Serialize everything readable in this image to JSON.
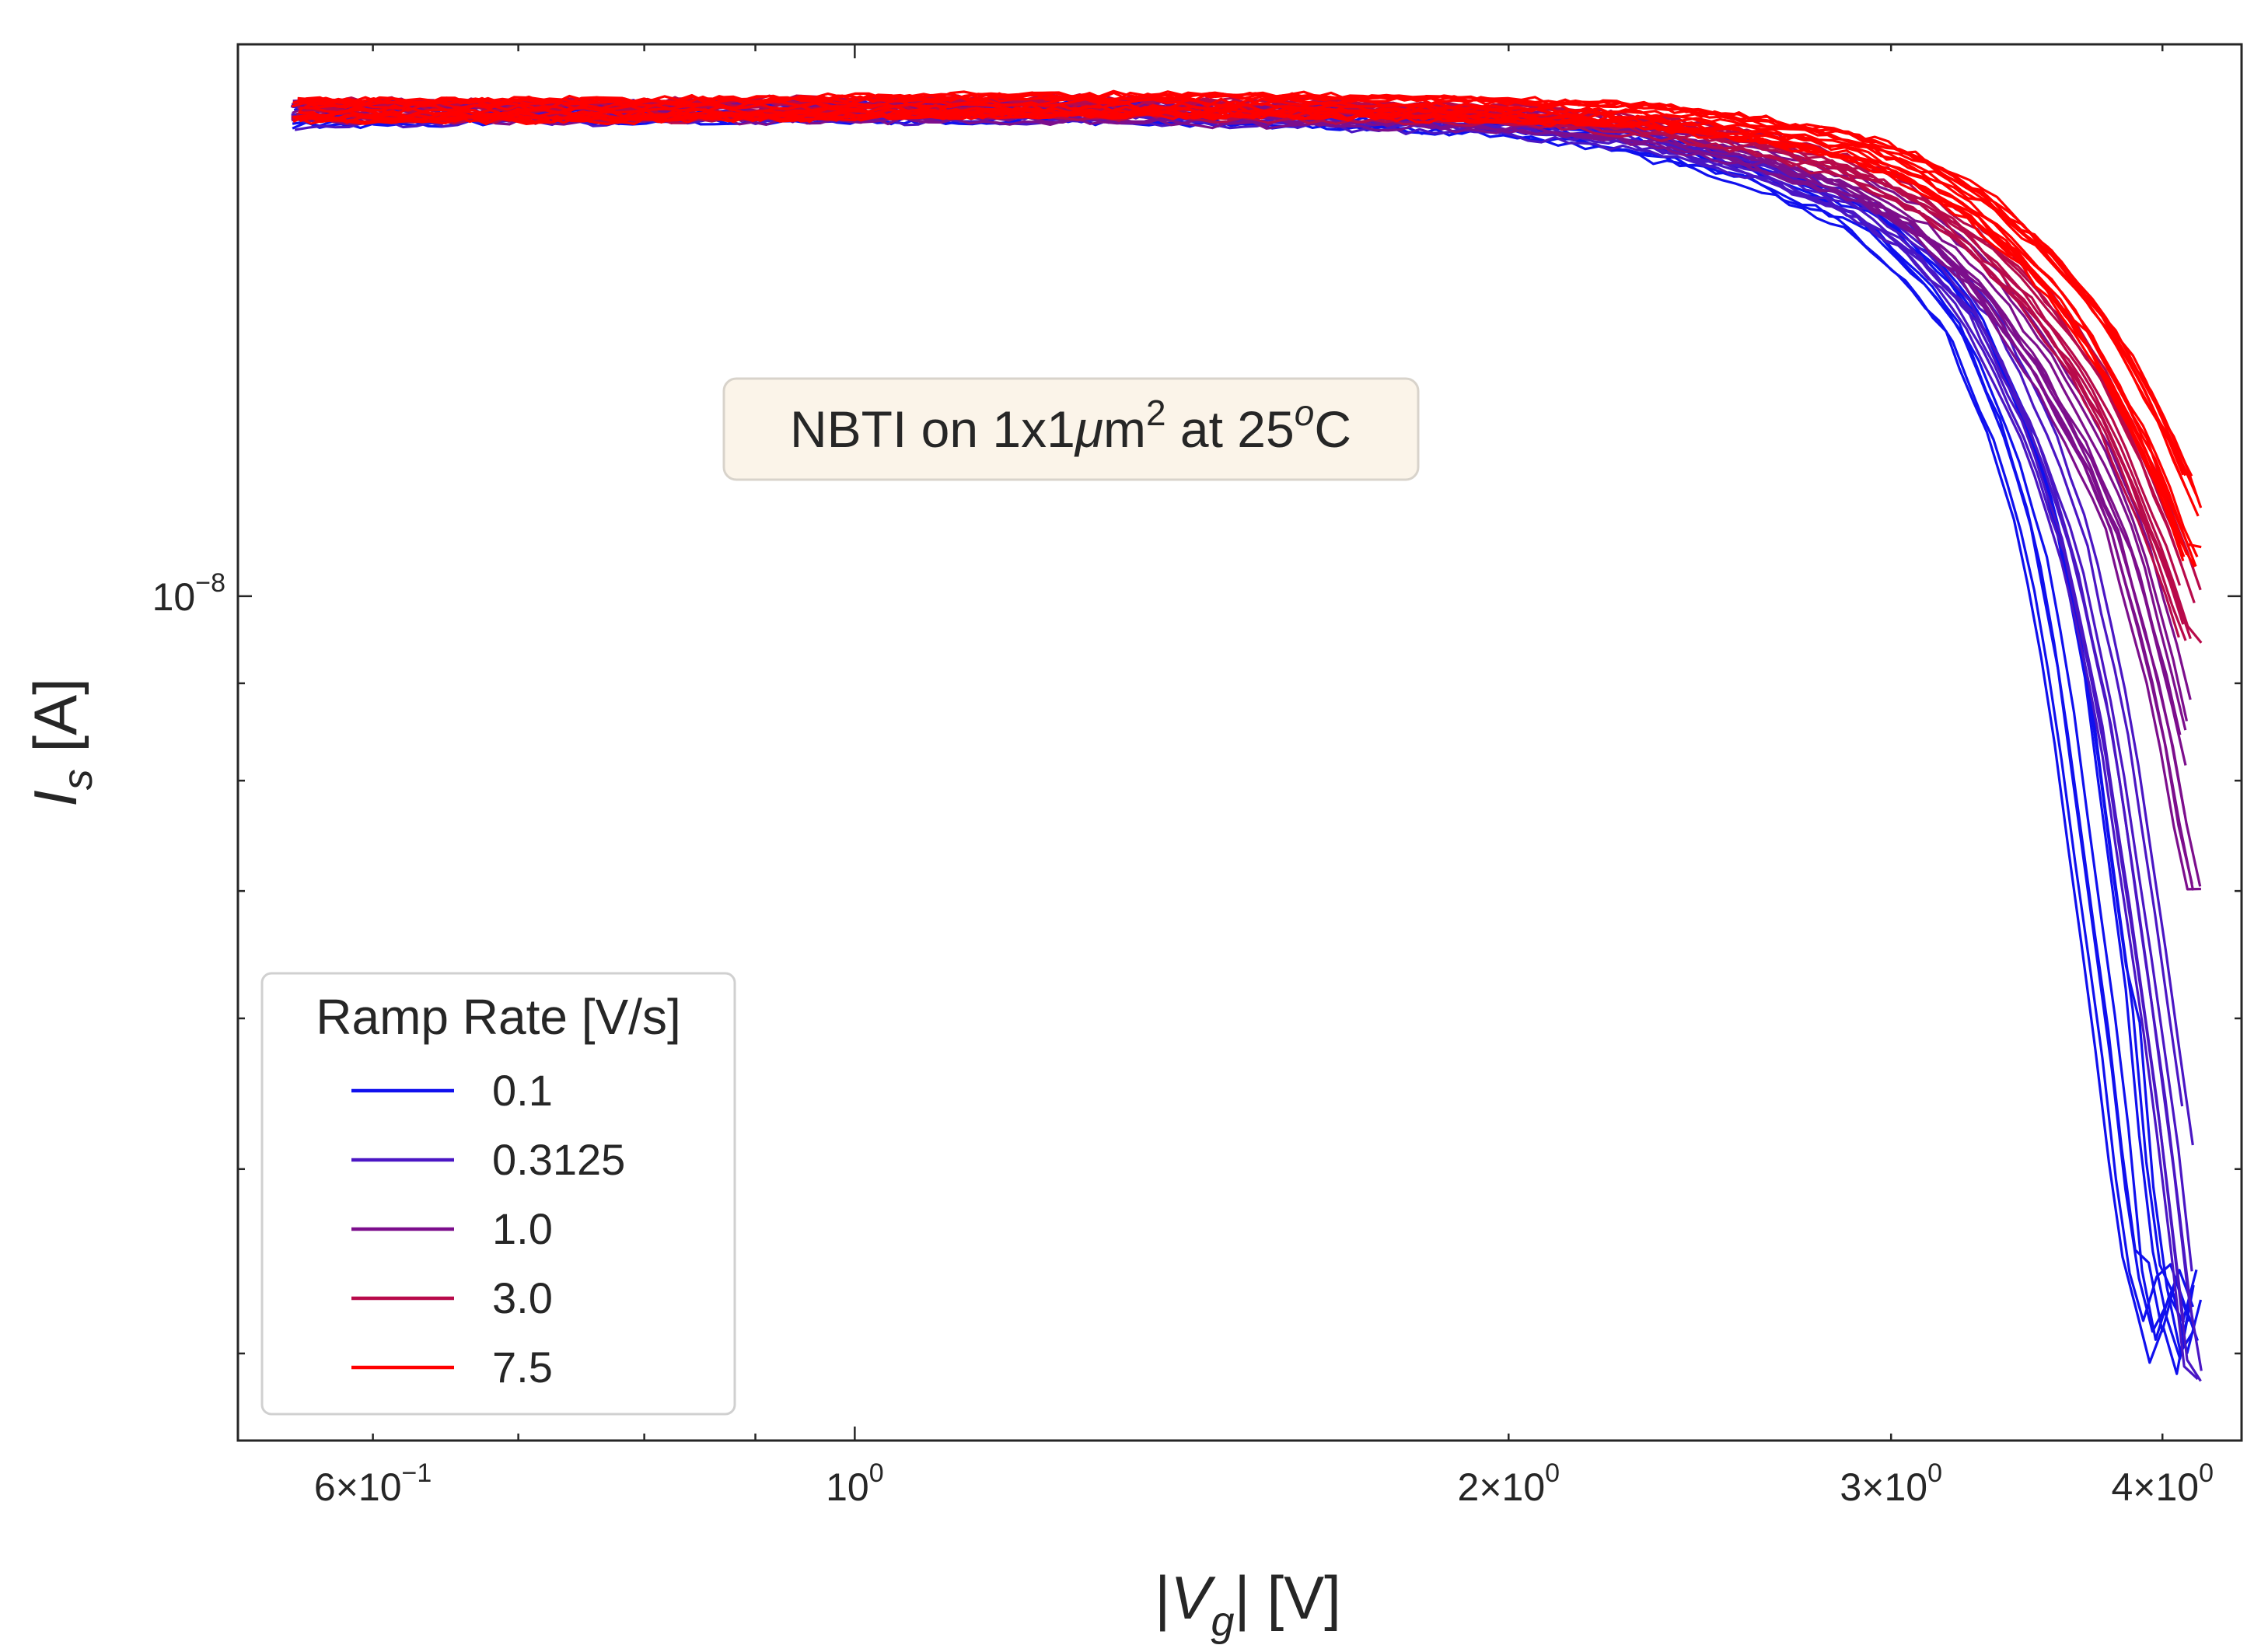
{
  "chart_data": {
    "type": "line",
    "x_scale": "log",
    "y_scale": "log",
    "xlabel": "|V_g| [V]",
    "ylabel": "I_s [A]",
    "xlim": [
      0.52,
      4.35
    ],
    "ylim": [
      3.6e-09,
      1.95e-08
    ],
    "x_ticks": [
      {
        "value": 0.6,
        "mant": "6",
        "sep": "×",
        "exp": "−1"
      },
      {
        "value": 1.0,
        "mant": "",
        "sep": "",
        "exp": "0"
      },
      {
        "value": 2.0,
        "mant": "2",
        "sep": "×",
        "exp": "0"
      },
      {
        "value": 3.0,
        "mant": "3",
        "sep": "×",
        "exp": "0"
      },
      {
        "value": 4.0,
        "mant": "4",
        "sep": "×",
        "exp": "0"
      }
    ],
    "y_ticks": [
      {
        "value": 1e-08,
        "mant": "",
        "sep": "",
        "exp": "−8"
      }
    ],
    "tick_base": "10",
    "annotation": {
      "parts": [
        "NBTI on 1x1",
        "μ",
        "m",
        "2",
        " at 25",
        "o",
        "C"
      ]
    },
    "legend": {
      "title": "Ramp Rate [V/s]",
      "location": "lower-left"
    },
    "series": [
      {
        "name": "0.1",
        "color": "#1010ee",
        "replicates": 8,
        "points": [
          [
            0.55,
            1.79e-08
          ],
          [
            0.8,
            1.8e-08
          ],
          [
            1.2,
            1.8e-08
          ],
          [
            1.6,
            1.79e-08
          ],
          [
            2.0,
            1.77e-08
          ],
          [
            2.3,
            1.73e-08
          ],
          [
            2.6,
            1.67e-08
          ],
          [
            2.9,
            1.58e-08
          ],
          [
            3.1,
            1.48e-08
          ],
          [
            3.25,
            1.38e-08
          ],
          [
            3.4,
            1.22e-08
          ],
          [
            3.52,
            1.07e-08
          ],
          [
            3.62,
            9e-09
          ],
          [
            3.72,
            7.1e-09
          ],
          [
            3.82,
            5.7e-09
          ],
          [
            3.9,
            4.6e-09
          ],
          [
            4.0,
            4.15e-09
          ],
          [
            4.12,
            4.3e-09
          ],
          [
            4.17,
            4.05e-09
          ]
        ]
      },
      {
        "name": "0.3125",
        "color": "#4a16c4",
        "replicates": 8,
        "points": [
          [
            0.55,
            1.79e-08
          ],
          [
            0.8,
            1.8e-08
          ],
          [
            1.2,
            1.8e-08
          ],
          [
            1.6,
            1.79e-08
          ],
          [
            2.0,
            1.77e-08
          ],
          [
            2.3,
            1.74e-08
          ],
          [
            2.6,
            1.68e-08
          ],
          [
            2.9,
            1.6e-08
          ],
          [
            3.1,
            1.52e-08
          ],
          [
            3.3,
            1.4e-08
          ],
          [
            3.5,
            1.22e-08
          ],
          [
            3.65,
            1.06e-08
          ],
          [
            3.8,
            8.6e-09
          ],
          [
            3.95,
            6.4e-09
          ],
          [
            4.05,
            5.2e-09
          ],
          [
            4.12,
            4.4e-09
          ],
          [
            4.17,
            3.9e-09
          ]
        ]
      },
      {
        "name": "1.0",
        "color": "#7c0e8c",
        "replicates": 10,
        "points": [
          [
            0.55,
            1.8e-08
          ],
          [
            0.8,
            1.8e-08
          ],
          [
            1.2,
            1.8e-08
          ],
          [
            1.6,
            1.79e-08
          ],
          [
            2.0,
            1.78e-08
          ],
          [
            2.3,
            1.75e-08
          ],
          [
            2.6,
            1.7e-08
          ],
          [
            2.9,
            1.63e-08
          ],
          [
            3.1,
            1.56e-08
          ],
          [
            3.3,
            1.46e-08
          ],
          [
            3.5,
            1.33e-08
          ],
          [
            3.7,
            1.19e-08
          ],
          [
            3.85,
            1.07e-08
          ],
          [
            4.0,
            9.1e-09
          ],
          [
            4.1,
            8e-09
          ],
          [
            4.17,
            7e-09
          ]
        ]
      },
      {
        "name": "3.0",
        "color": "#b80a4a",
        "replicates": 10,
        "points": [
          [
            0.55,
            1.8e-08
          ],
          [
            0.8,
            1.8e-08
          ],
          [
            1.2,
            1.81e-08
          ],
          [
            1.6,
            1.8e-08
          ],
          [
            2.0,
            1.79e-08
          ],
          [
            2.3,
            1.77e-08
          ],
          [
            2.6,
            1.73e-08
          ],
          [
            2.9,
            1.67e-08
          ],
          [
            3.1,
            1.61e-08
          ],
          [
            3.3,
            1.53e-08
          ],
          [
            3.5,
            1.43e-08
          ],
          [
            3.7,
            1.31e-08
          ],
          [
            3.85,
            1.2e-08
          ],
          [
            4.0,
            1.08e-08
          ],
          [
            4.1,
            1e-08
          ],
          [
            4.17,
            9.4e-09
          ]
        ]
      },
      {
        "name": "7.5",
        "color": "#ff0000",
        "replicates": 16,
        "points": [
          [
            0.55,
            1.8e-08
          ],
          [
            0.8,
            1.8e-08
          ],
          [
            1.2,
            1.81e-08
          ],
          [
            1.6,
            1.81e-08
          ],
          [
            2.0,
            1.8e-08
          ],
          [
            2.3,
            1.79e-08
          ],
          [
            2.6,
            1.76e-08
          ],
          [
            2.9,
            1.72e-08
          ],
          [
            3.1,
            1.67e-08
          ],
          [
            3.3,
            1.6e-08
          ],
          [
            3.5,
            1.51e-08
          ],
          [
            3.7,
            1.4e-08
          ],
          [
            3.85,
            1.3e-08
          ],
          [
            4.0,
            1.19e-08
          ],
          [
            4.1,
            1.11e-08
          ],
          [
            4.17,
            1.05e-08
          ]
        ]
      }
    ]
  }
}
